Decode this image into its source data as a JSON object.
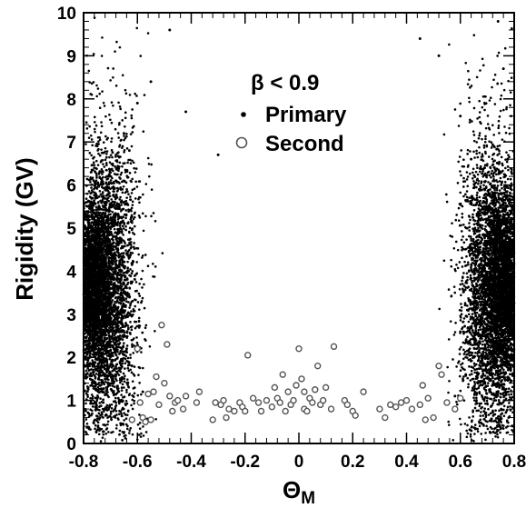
{
  "chart_data": {
    "type": "scatter",
    "title": "",
    "xlabel": "Θ",
    "xlabel_sub": "M",
    "ylabel": "Rigidity (GV)",
    "xlim": [
      -0.8,
      0.8
    ],
    "ylim": [
      0,
      10
    ],
    "x_ticks": [
      -0.8,
      -0.6,
      -0.4,
      -0.2,
      0,
      0.2,
      0.4,
      0.6,
      0.8
    ],
    "x_tick_labels": [
      "-0.8",
      "-0.6",
      "-0.4",
      "-0.2",
      "0",
      "0.2",
      "0.4",
      "0.6",
      "0.8"
    ],
    "y_ticks": [
      0,
      1,
      2,
      3,
      4,
      5,
      6,
      7,
      8,
      9,
      10
    ],
    "y_tick_labels": [
      "0",
      "1",
      "2",
      "3",
      "4",
      "5",
      "6",
      "7",
      "8",
      "9",
      "10"
    ],
    "grid": false,
    "legend": {
      "placement": "top-center",
      "header": "β < 0.9",
      "entries": [
        "Primary",
        "Second"
      ]
    },
    "series": [
      {
        "name": "Primary",
        "marker": "dot",
        "description_of_distribution": "dense clusters near Θ_M = ±0.8 peaking at about 3.5–4 GV, sparse points up to 10 GV",
        "points": [
          [
            -0.78,
            3.2
          ],
          [
            -0.77,
            3.6
          ],
          [
            -0.76,
            4.1
          ],
          [
            -0.75,
            2.8
          ],
          [
            -0.74,
            3.9
          ],
          [
            -0.73,
            4.4
          ],
          [
            -0.72,
            3.1
          ],
          [
            -0.71,
            5.2
          ],
          [
            -0.7,
            2.6
          ],
          [
            -0.69,
            4.8
          ],
          [
            -0.68,
            6.1
          ],
          [
            -0.67,
            3.4
          ],
          [
            -0.66,
            5.6
          ],
          [
            -0.65,
            7.2
          ],
          [
            -0.64,
            2.2
          ],
          [
            -0.63,
            6.8
          ],
          [
            -0.62,
            1.8
          ],
          [
            -0.6,
            7.9
          ],
          [
            -0.58,
            1.2
          ],
          [
            -0.55,
            8.4
          ],
          [
            -0.52,
            0.9
          ],
          [
            -0.48,
            9.6
          ],
          [
            -0.42,
            7.7
          ],
          [
            -0.3,
            6.7
          ],
          [
            0.45,
            9.4
          ],
          [
            0.52,
            9.0
          ],
          [
            0.58,
            1.1
          ],
          [
            0.6,
            7.6
          ],
          [
            0.62,
            1.6
          ],
          [
            0.64,
            6.6
          ],
          [
            0.66,
            2.3
          ],
          [
            0.67,
            5.9
          ],
          [
            0.68,
            3.0
          ],
          [
            0.69,
            6.4
          ],
          [
            0.7,
            4.7
          ],
          [
            0.71,
            2.7
          ],
          [
            0.72,
            5.1
          ],
          [
            0.73,
            3.3
          ],
          [
            0.74,
            4.3
          ],
          [
            0.75,
            3.7
          ],
          [
            0.76,
            4.0
          ],
          [
            0.77,
            3.5
          ],
          [
            0.78,
            2.9
          ],
          [
            0.74,
            9.8
          ],
          [
            0.76,
            8.7
          ],
          [
            0.79,
            6.3
          ]
        ]
      },
      {
        "name": "Second",
        "marker": "open-circle",
        "points": [
          [
            -0.62,
            0.55
          ],
          [
            -0.6,
            2.2
          ],
          [
            -0.59,
            0.95
          ],
          [
            -0.58,
            0.6
          ],
          [
            -0.57,
            0.5
          ],
          [
            -0.56,
            1.15
          ],
          [
            -0.55,
            0.55
          ],
          [
            -0.54,
            1.2
          ],
          [
            -0.53,
            1.55
          ],
          [
            -0.52,
            0.9
          ],
          [
            -0.51,
            2.75
          ],
          [
            -0.5,
            1.4
          ],
          [
            -0.49,
            2.3
          ],
          [
            -0.48,
            1.1
          ],
          [
            -0.47,
            0.75
          ],
          [
            -0.46,
            0.95
          ],
          [
            -0.45,
            1.0
          ],
          [
            -0.43,
            0.8
          ],
          [
            -0.42,
            1.1
          ],
          [
            -0.38,
            0.95
          ],
          [
            -0.37,
            1.2
          ],
          [
            -0.32,
            0.55
          ],
          [
            -0.31,
            0.95
          ],
          [
            -0.29,
            0.9
          ],
          [
            -0.28,
            1.0
          ],
          [
            -0.27,
            0.6
          ],
          [
            -0.26,
            0.8
          ],
          [
            -0.24,
            0.75
          ],
          [
            -0.22,
            0.95
          ],
          [
            -0.21,
            0.85
          ],
          [
            -0.2,
            0.75
          ],
          [
            -0.19,
            2.05
          ],
          [
            -0.17,
            1.05
          ],
          [
            -0.15,
            0.95
          ],
          [
            -0.14,
            0.75
          ],
          [
            -0.12,
            1.0
          ],
          [
            -0.1,
            0.85
          ],
          [
            -0.09,
            1.3
          ],
          [
            -0.08,
            1.05
          ],
          [
            -0.07,
            0.95
          ],
          [
            -0.06,
            1.6
          ],
          [
            -0.05,
            0.75
          ],
          [
            -0.04,
            1.2
          ],
          [
            -0.03,
            0.9
          ],
          [
            -0.02,
            1.0
          ],
          [
            -0.01,
            1.35
          ],
          [
            0.0,
            2.2
          ],
          [
            0.01,
            1.5
          ],
          [
            0.02,
            0.8
          ],
          [
            0.02,
            1.2
          ],
          [
            0.03,
            0.75
          ],
          [
            0.04,
            1.05
          ],
          [
            0.05,
            0.95
          ],
          [
            0.06,
            1.25
          ],
          [
            0.07,
            1.8
          ],
          [
            0.08,
            0.9
          ],
          [
            0.09,
            1.0
          ],
          [
            0.1,
            1.3
          ],
          [
            0.12,
            0.8
          ],
          [
            0.13,
            2.25
          ],
          [
            0.17,
            1.0
          ],
          [
            0.18,
            0.9
          ],
          [
            0.2,
            0.75
          ],
          [
            0.21,
            0.65
          ],
          [
            0.24,
            1.2
          ],
          [
            0.3,
            0.8
          ],
          [
            0.32,
            0.6
          ],
          [
            0.34,
            0.9
          ],
          [
            0.36,
            0.85
          ],
          [
            0.38,
            0.95
          ],
          [
            0.4,
            1.0
          ],
          [
            0.42,
            0.8
          ],
          [
            0.45,
            0.9
          ],
          [
            0.46,
            1.35
          ],
          [
            0.47,
            0.55
          ],
          [
            0.48,
            1.05
          ],
          [
            0.5,
            0.6
          ],
          [
            0.52,
            1.8
          ],
          [
            0.53,
            1.6
          ],
          [
            0.55,
            0.95
          ],
          [
            0.58,
            0.8
          ],
          [
            0.6,
            1.05
          ]
        ]
      }
    ]
  }
}
